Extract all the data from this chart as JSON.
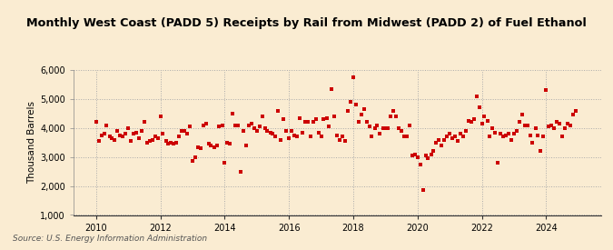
{
  "title": "Monthly West Coast (PADD 5) Receipts by Rail from Midwest (PADD 2) of Fuel Ethanol",
  "ylabel": "Thousand Barrels",
  "source": "Source: U.S. Energy Information Administration",
  "background_color": "#faecd2",
  "marker_color": "#cc0000",
  "ylim": [
    1000,
    6000
  ],
  "yticks": [
    1000,
    2000,
    3000,
    4000,
    5000,
    6000
  ],
  "ytick_labels": [
    "1,000",
    "2,000",
    "3,000",
    "4,000",
    "5,000",
    "6,000"
  ],
  "xticks": [
    2010,
    2012,
    2014,
    2016,
    2018,
    2020,
    2022,
    2024
  ],
  "xlim_start": 2009.3,
  "xlim_end": 2025.7,
  "data": [
    [
      2010.0,
      4200
    ],
    [
      2010.08,
      3550
    ],
    [
      2010.17,
      3750
    ],
    [
      2010.25,
      3800
    ],
    [
      2010.33,
      4100
    ],
    [
      2010.42,
      3700
    ],
    [
      2010.5,
      3650
    ],
    [
      2010.58,
      3600
    ],
    [
      2010.67,
      3900
    ],
    [
      2010.75,
      3750
    ],
    [
      2010.83,
      3700
    ],
    [
      2010.92,
      3800
    ],
    [
      2011.0,
      4000
    ],
    [
      2011.08,
      3550
    ],
    [
      2011.17,
      3800
    ],
    [
      2011.25,
      3850
    ],
    [
      2011.33,
      3650
    ],
    [
      2011.42,
      3900
    ],
    [
      2011.5,
      4200
    ],
    [
      2011.58,
      3500
    ],
    [
      2011.67,
      3550
    ],
    [
      2011.75,
      3600
    ],
    [
      2011.83,
      3700
    ],
    [
      2011.92,
      3650
    ],
    [
      2012.0,
      4400
    ],
    [
      2012.08,
      3800
    ],
    [
      2012.17,
      3550
    ],
    [
      2012.25,
      3450
    ],
    [
      2012.33,
      3500
    ],
    [
      2012.42,
      3450
    ],
    [
      2012.5,
      3500
    ],
    [
      2012.58,
      3700
    ],
    [
      2012.67,
      3900
    ],
    [
      2012.75,
      3900
    ],
    [
      2012.83,
      3800
    ],
    [
      2012.92,
      4050
    ],
    [
      2013.0,
      2850
    ],
    [
      2013.08,
      3000
    ],
    [
      2013.17,
      3350
    ],
    [
      2013.25,
      3300
    ],
    [
      2013.33,
      4100
    ],
    [
      2013.42,
      4150
    ],
    [
      2013.5,
      3450
    ],
    [
      2013.58,
      3400
    ],
    [
      2013.67,
      3350
    ],
    [
      2013.75,
      3400
    ],
    [
      2013.83,
      4050
    ],
    [
      2013.92,
      4100
    ],
    [
      2014.0,
      2800
    ],
    [
      2014.08,
      3500
    ],
    [
      2014.17,
      3450
    ],
    [
      2014.25,
      4500
    ],
    [
      2014.33,
      4100
    ],
    [
      2014.42,
      4100
    ],
    [
      2014.5,
      2500
    ],
    [
      2014.58,
      3900
    ],
    [
      2014.67,
      3400
    ],
    [
      2014.75,
      4100
    ],
    [
      2014.83,
      4150
    ],
    [
      2014.92,
      4000
    ],
    [
      2015.0,
      3900
    ],
    [
      2015.08,
      4050
    ],
    [
      2015.17,
      4400
    ],
    [
      2015.25,
      4000
    ],
    [
      2015.33,
      3900
    ],
    [
      2015.42,
      3850
    ],
    [
      2015.5,
      3800
    ],
    [
      2015.58,
      3700
    ],
    [
      2015.67,
      4600
    ],
    [
      2015.75,
      3600
    ],
    [
      2015.83,
      4300
    ],
    [
      2015.92,
      3900
    ],
    [
      2016.0,
      3650
    ],
    [
      2016.08,
      3900
    ],
    [
      2016.17,
      3750
    ],
    [
      2016.25,
      3700
    ],
    [
      2016.33,
      4350
    ],
    [
      2016.42,
      3850
    ],
    [
      2016.5,
      4200
    ],
    [
      2016.58,
      4200
    ],
    [
      2016.67,
      3700
    ],
    [
      2016.75,
      4200
    ],
    [
      2016.83,
      4300
    ],
    [
      2016.92,
      3850
    ],
    [
      2017.0,
      3700
    ],
    [
      2017.08,
      4300
    ],
    [
      2017.17,
      4350
    ],
    [
      2017.25,
      4050
    ],
    [
      2017.33,
      5350
    ],
    [
      2017.42,
      4400
    ],
    [
      2017.5,
      3750
    ],
    [
      2017.58,
      3600
    ],
    [
      2017.67,
      3700
    ],
    [
      2017.75,
      3550
    ],
    [
      2017.83,
      4600
    ],
    [
      2017.92,
      4900
    ],
    [
      2018.0,
      5750
    ],
    [
      2018.08,
      4800
    ],
    [
      2018.17,
      4200
    ],
    [
      2018.25,
      4450
    ],
    [
      2018.33,
      4650
    ],
    [
      2018.42,
      4200
    ],
    [
      2018.5,
      4050
    ],
    [
      2018.58,
      3700
    ],
    [
      2018.67,
      4000
    ],
    [
      2018.75,
      4100
    ],
    [
      2018.83,
      3800
    ],
    [
      2018.92,
      4000
    ],
    [
      2019.0,
      4000
    ],
    [
      2019.08,
      4000
    ],
    [
      2019.17,
      4400
    ],
    [
      2019.25,
      4600
    ],
    [
      2019.33,
      4400
    ],
    [
      2019.42,
      4000
    ],
    [
      2019.5,
      3900
    ],
    [
      2019.58,
      3700
    ],
    [
      2019.67,
      3700
    ],
    [
      2019.75,
      4100
    ],
    [
      2019.83,
      3050
    ],
    [
      2019.92,
      3100
    ],
    [
      2020.0,
      3000
    ],
    [
      2020.08,
      2750
    ],
    [
      2020.17,
      1850
    ],
    [
      2020.25,
      3050
    ],
    [
      2020.33,
      2950
    ],
    [
      2020.42,
      3100
    ],
    [
      2020.5,
      3200
    ],
    [
      2020.58,
      3500
    ],
    [
      2020.67,
      3600
    ],
    [
      2020.75,
      3400
    ],
    [
      2020.83,
      3600
    ],
    [
      2020.92,
      3700
    ],
    [
      2021.0,
      3800
    ],
    [
      2021.08,
      3650
    ],
    [
      2021.17,
      3700
    ],
    [
      2021.25,
      3550
    ],
    [
      2021.33,
      3800
    ],
    [
      2021.42,
      3700
    ],
    [
      2021.5,
      3900
    ],
    [
      2021.58,
      4250
    ],
    [
      2021.67,
      4200
    ],
    [
      2021.75,
      4300
    ],
    [
      2021.83,
      5100
    ],
    [
      2021.92,
      4700
    ],
    [
      2022.0,
      4150
    ],
    [
      2022.08,
      4400
    ],
    [
      2022.17,
      4250
    ],
    [
      2022.25,
      3700
    ],
    [
      2022.33,
      4000
    ],
    [
      2022.42,
      3850
    ],
    [
      2022.5,
      2800
    ],
    [
      2022.58,
      3800
    ],
    [
      2022.67,
      3700
    ],
    [
      2022.75,
      3750
    ],
    [
      2022.83,
      3800
    ],
    [
      2022.92,
      3600
    ],
    [
      2023.0,
      3800
    ],
    [
      2023.08,
      3900
    ],
    [
      2023.17,
      4200
    ],
    [
      2023.25,
      4450
    ],
    [
      2023.33,
      4100
    ],
    [
      2023.42,
      4100
    ],
    [
      2023.5,
      3750
    ],
    [
      2023.58,
      3500
    ],
    [
      2023.67,
      4000
    ],
    [
      2023.75,
      3750
    ],
    [
      2023.83,
      3200
    ],
    [
      2023.92,
      3700
    ],
    [
      2024.0,
      5300
    ],
    [
      2024.08,
      4050
    ],
    [
      2024.17,
      4100
    ],
    [
      2024.25,
      4000
    ],
    [
      2024.33,
      4200
    ],
    [
      2024.42,
      4150
    ],
    [
      2024.5,
      3700
    ],
    [
      2024.58,
      4000
    ],
    [
      2024.67,
      4150
    ],
    [
      2024.75,
      4100
    ],
    [
      2024.83,
      4450
    ],
    [
      2024.92,
      4600
    ]
  ]
}
